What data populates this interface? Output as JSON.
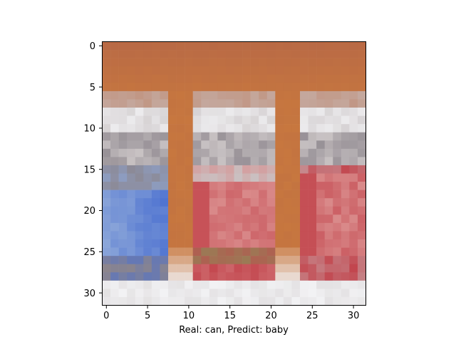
{
  "figure": {
    "xlabel": "Real: can, Predict: baby",
    "x_ticks": [
      "0",
      "5",
      "10",
      "15",
      "20",
      "25",
      "30"
    ],
    "y_ticks": [
      "0",
      "5",
      "10",
      "15",
      "20",
      "25",
      "30"
    ]
  },
  "image": {
    "description_visible": "pixelated 32x32 photo of three drink cans (blue, red, red) on an orange background",
    "grid_size": 32,
    "colors": {
      "background_top": "#b96a45",
      "orange_mid": "#c7773f",
      "can_silver": "#c9c3c4",
      "can_white": "#ecebed",
      "can_blue": "#4a6fd0",
      "can_blue_light": "#8ea8d9",
      "can_red": "#c2444c",
      "can_red_light": "#d98a8a",
      "can_gray": "#8c858c",
      "can_brown": "#9b7a55",
      "floor_white": "#f2f2f4"
    }
  }
}
